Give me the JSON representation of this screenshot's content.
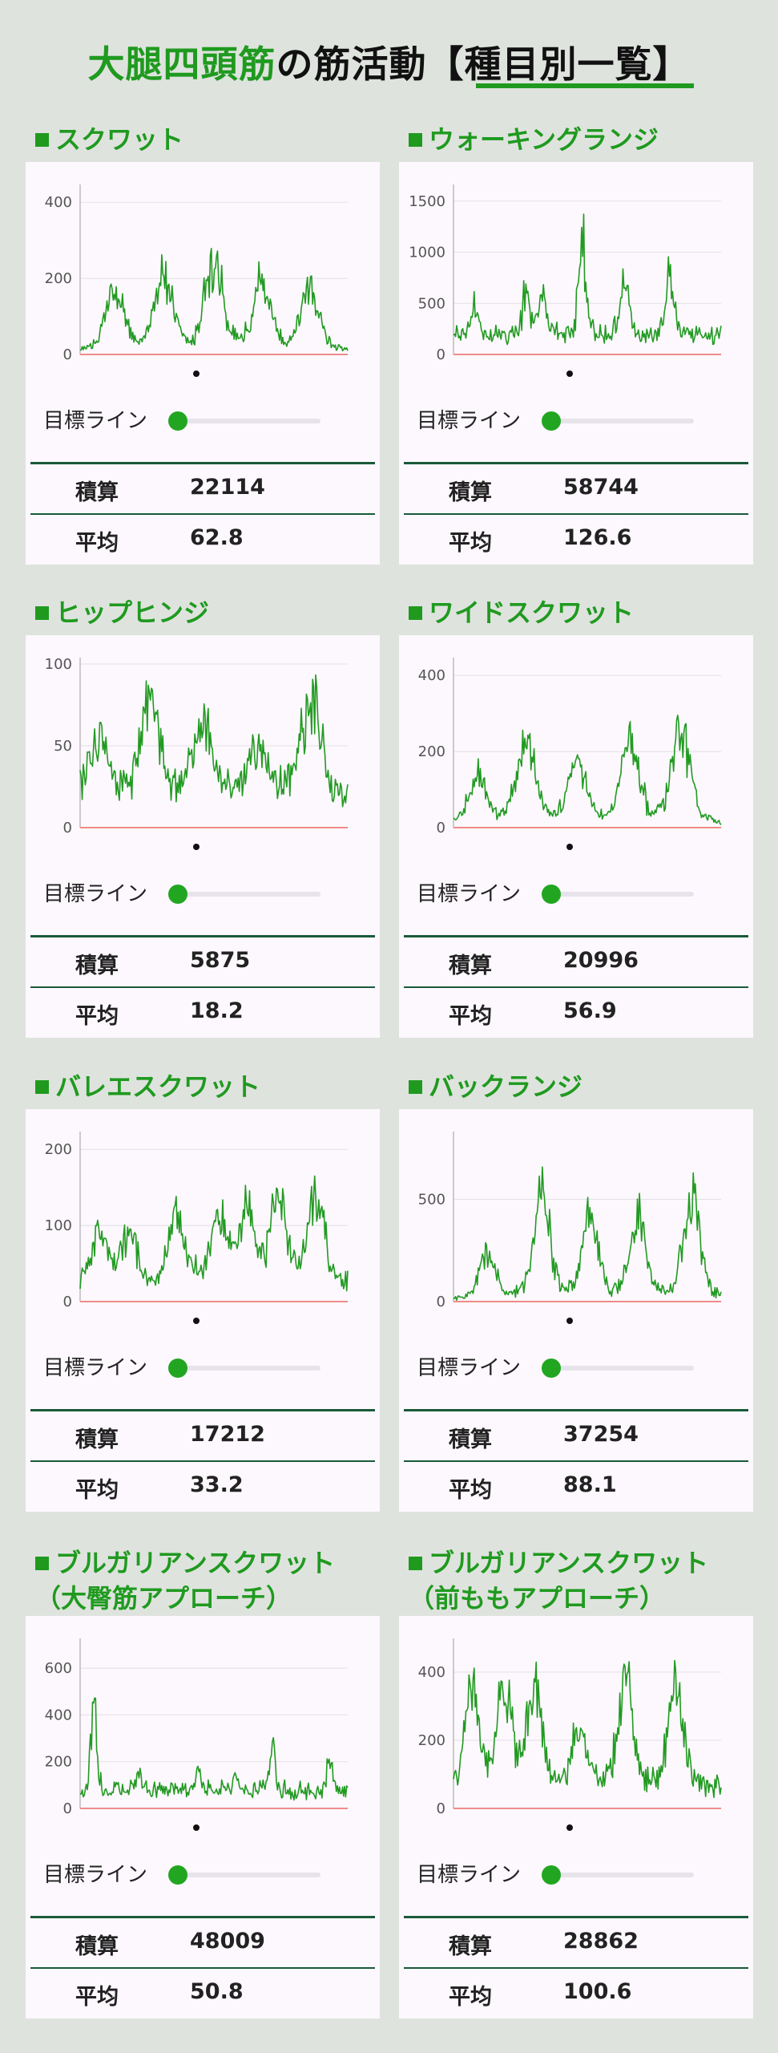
{
  "page_title_green": "大腿四頭筋",
  "page_title_rest": "の筋活動【種目別一覧】",
  "labels": {
    "target_line": "目標ライン",
    "sum": "積算",
    "avg": "平均"
  },
  "colors": {
    "accent": "#1f9a1f",
    "line": "#229a22",
    "baseline": "#f08a8a"
  },
  "chart_data": [
    {
      "type": "line",
      "title": "スクワット",
      "ylim": [
        0,
        430
      ],
      "yticks": [
        0,
        200,
        400
      ],
      "reps": [
        {
          "c": 0.13,
          "h": 180
        },
        {
          "c": 0.31,
          "h": 230
        },
        {
          "c": 0.5,
          "h": 275
        },
        {
          "c": 0.68,
          "h": 205
        },
        {
          "c": 0.86,
          "h": 180
        }
      ],
      "rep_width": 0.045,
      "base": 8,
      "noise": 0.28,
      "seed": 11
    },
    {
      "type": "line",
      "title": "ウォーキングランジ",
      "ylim": [
        0,
        1600
      ],
      "yticks": [
        0,
        500,
        1000,
        1500
      ],
      "reps": [
        {
          "c": 0.08,
          "h": 350
        },
        {
          "c": 0.27,
          "h": 480
        },
        {
          "c": 0.48,
          "h": 1080
        },
        {
          "c": 0.64,
          "h": 720
        },
        {
          "c": 0.81,
          "h": 780
        },
        {
          "c": 0.33,
          "h": 500
        }
      ],
      "rep_width": 0.018,
      "base": 120,
      "noise": 0.6,
      "seed": 23
    },
    {
      "type": "line",
      "title": "ヒップヒンジ",
      "ylim": [
        0,
        100
      ],
      "yticks": [
        0,
        50,
        100
      ],
      "reps": [
        {
          "c": 0.07,
          "h": 40
        },
        {
          "c": 0.26,
          "h": 60
        },
        {
          "c": 0.46,
          "h": 46
        },
        {
          "c": 0.66,
          "h": 34
        },
        {
          "c": 0.86,
          "h": 68
        }
      ],
      "rep_width": 0.05,
      "base": 14,
      "noise": 0.35,
      "seed": 37
    },
    {
      "type": "line",
      "title": "ワイドスクワット",
      "ylim": [
        0,
        430
      ],
      "yticks": [
        0,
        200,
        400
      ],
      "reps": [
        {
          "c": 0.09,
          "h": 140
        },
        {
          "c": 0.27,
          "h": 265
        },
        {
          "c": 0.46,
          "h": 185
        },
        {
          "c": 0.66,
          "h": 245
        },
        {
          "c": 0.85,
          "h": 290
        }
      ],
      "rep_width": 0.045,
      "base": 8,
      "noise": 0.3,
      "seed": 41
    },
    {
      "type": "line",
      "title": "バレエスクワット",
      "ylim": [
        0,
        215
      ],
      "yticks": [
        0,
        100,
        200
      ],
      "reps": [
        {
          "c": 0.07,
          "h": 70
        },
        {
          "c": 0.18,
          "h": 80
        },
        {
          "c": 0.36,
          "h": 105
        },
        {
          "c": 0.52,
          "h": 100
        },
        {
          "c": 0.74,
          "h": 140
        },
        {
          "c": 0.88,
          "h": 135
        },
        {
          "c": 0.62,
          "h": 110
        }
      ],
      "rep_width": 0.04,
      "base": 15,
      "noise": 0.55,
      "seed": 53
    },
    {
      "type": "line",
      "title": "バックランジ",
      "ylim": [
        0,
        800
      ],
      "yticks": [
        0,
        500
      ],
      "reps": [
        {
          "c": 0.13,
          "h": 260
        },
        {
          "c": 0.33,
          "h": 590
        },
        {
          "c": 0.51,
          "h": 460
        },
        {
          "c": 0.69,
          "h": 460
        },
        {
          "c": 0.89,
          "h": 600
        }
      ],
      "rep_width": 0.04,
      "base": 10,
      "noise": 0.3,
      "seed": 67
    },
    {
      "type": "line",
      "title": "ブルガリアンスクワット",
      "subtitle": "（大臀筋アプローチ）",
      "ylim": [
        0,
        700
      ],
      "yticks": [
        0,
        200,
        400,
        600
      ],
      "reps": [
        {
          "c": 0.05,
          "h": 470
        },
        {
          "c": 0.22,
          "h": 110
        },
        {
          "c": 0.44,
          "h": 120
        },
        {
          "c": 0.72,
          "h": 260
        },
        {
          "c": 0.93,
          "h": 180
        },
        {
          "c": 0.58,
          "h": 100
        }
      ],
      "rep_width": 0.012,
      "base": 50,
      "noise": 0.5,
      "seed": 79
    },
    {
      "type": "line",
      "title": "ブルガリアンスクワット",
      "subtitle": "（前ももアプローチ）",
      "ylim": [
        0,
        480
      ],
      "yticks": [
        0,
        200,
        400
      ],
      "reps": [
        {
          "c": 0.07,
          "h": 340
        },
        {
          "c": 0.19,
          "h": 320
        },
        {
          "c": 0.3,
          "h": 360
        },
        {
          "c": 0.47,
          "h": 220
        },
        {
          "c": 0.64,
          "h": 390
        },
        {
          "c": 0.83,
          "h": 375
        }
      ],
      "rep_width": 0.035,
      "base": 40,
      "noise": 0.55,
      "seed": 97
    }
  ],
  "stats": [
    {
      "sum": "22114",
      "avg": "62.8"
    },
    {
      "sum": "58744",
      "avg": "126.6"
    },
    {
      "sum": "5875",
      "avg": "18.2"
    },
    {
      "sum": "20996",
      "avg": "56.9"
    },
    {
      "sum": "17212",
      "avg": "33.2"
    },
    {
      "sum": "37254",
      "avg": "88.1"
    },
    {
      "sum": "48009",
      "avg": "50.8"
    },
    {
      "sum": "28862",
      "avg": "100.6"
    }
  ]
}
